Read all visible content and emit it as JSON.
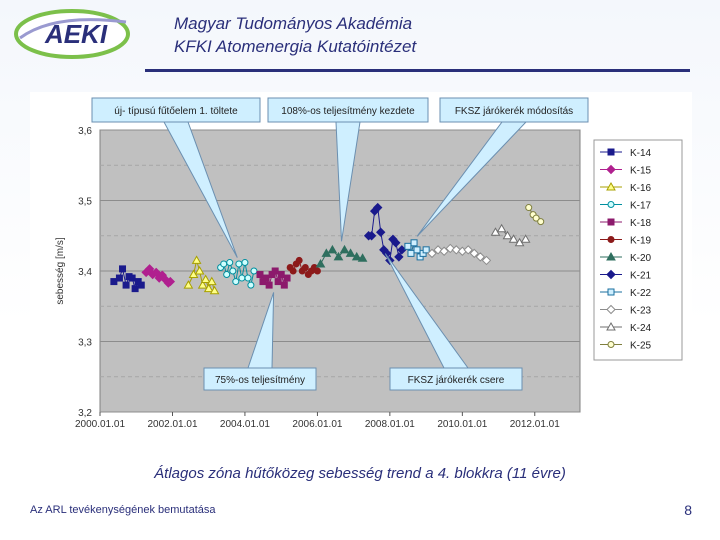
{
  "header": {
    "logo_text": "AEKI",
    "line1": "Magyar Tudományos Akadémia",
    "line2": "KFKI Atomenergia Kutatóintézet"
  },
  "caption": "Átlagos zóna hűtőközeg sebesség trend a 4. blokkra (11 évre)",
  "footer": {
    "left": "Az ARL tevékenységének bemutatása",
    "page": "8"
  },
  "colors": {
    "title": "#2a2f7a",
    "plot_bg": "#c0c0c0"
  },
  "chart_data": {
    "type": "scatter",
    "ylabel": "sebesség [m/s]",
    "xlabel": "",
    "ylim": [
      3.2,
      3.6
    ],
    "yticks": [
      "3,2",
      "3,3",
      "3,4",
      "3,5",
      "3,6"
    ],
    "xticks": [
      "2000.01.01",
      "2002.01.01",
      "2004.01.01",
      "2006.01.01",
      "2008.01.01",
      "2010.01.01",
      "2012.01.01"
    ],
    "grid": true,
    "legend_position": "right",
    "annotations": [
      {
        "text": "új- típusú fűtőelem 1. töltete",
        "placement": "top",
        "target": "K-17"
      },
      {
        "text": "108%-os teljesítmény kezdete",
        "placement": "top",
        "target": "K-20"
      },
      {
        "text": "FKSZ járókerék módosítás",
        "placement": "top",
        "target": "K-22"
      },
      {
        "text": "75%-os teljesítmény",
        "placement": "bottom",
        "target": "K-18"
      },
      {
        "text": "FKSZ járókerék csere",
        "placement": "bottom",
        "target": "K-21"
      }
    ],
    "series": [
      {
        "name": "K-14",
        "marker": "square",
        "color": "#1a1a8c",
        "fill": "#1a1a8c",
        "line": true,
        "x": [
          "2000-05-20",
          "2000-07-15",
          "2000-08-15",
          "2000-09-20",
          "2000-10-20",
          "2000-11-20",
          "2000-12-20",
          "2001-01-20",
          "2001-02-20"
        ],
        "values": [
          3.385,
          3.39,
          3.403,
          3.38,
          3.392,
          3.39,
          3.375,
          3.385,
          3.38
        ]
      },
      {
        "name": "K-15",
        "marker": "diamond",
        "color": "#b0208f",
        "fill": "#b0208f",
        "line": true,
        "x": [
          "2001-04-10",
          "2001-05-15",
          "2001-06-15",
          "2001-07-20",
          "2001-08-20",
          "2001-09-20",
          "2001-10-20",
          "2001-11-20",
          "2001-12-10"
        ],
        "values": [
          3.398,
          3.403,
          3.395,
          3.398,
          3.39,
          3.394,
          3.388,
          3.383,
          3.385
        ]
      },
      {
        "name": "K-16",
        "marker": "triangle",
        "color": "#a8a000",
        "fill": "#ffff88",
        "line": true,
        "x": [
          "2002-06-10",
          "2002-08-01",
          "2002-09-01",
          "2002-10-01",
          "2002-11-01",
          "2002-12-01",
          "2003-01-01",
          "2003-02-01",
          "2003-03-01"
        ],
        "values": [
          3.38,
          3.395,
          3.415,
          3.4,
          3.38,
          3.388,
          3.375,
          3.385,
          3.372
        ]
      },
      {
        "name": "K-17",
        "marker": "circle",
        "color": "#008f9f",
        "fill": "#cfffff",
        "line": true,
        "x": [
          "2003-05-01",
          "2003-06-01",
          "2003-07-01",
          "2003-08-01",
          "2003-09-01",
          "2003-10-01",
          "2003-11-01",
          "2003-12-01",
          "2004-01-01",
          "2004-02-01",
          "2004-03-01",
          "2004-04-01"
        ],
        "values": [
          3.405,
          3.41,
          3.395,
          3.412,
          3.4,
          3.385,
          3.41,
          3.39,
          3.412,
          3.39,
          3.38,
          3.4
        ]
      },
      {
        "name": "K-18",
        "marker": "square",
        "color": "#8c1a6c",
        "fill": "#8c1a6c",
        "line": true,
        "x": [
          "2004-06-01",
          "2004-07-01",
          "2004-08-01",
          "2004-09-01",
          "2004-10-01",
          "2004-11-01",
          "2004-12-01",
          "2005-01-01",
          "2005-02-01",
          "2005-03-01"
        ],
        "values": [
          3.395,
          3.385,
          3.39,
          3.38,
          3.395,
          3.4,
          3.385,
          3.395,
          3.38,
          3.39
        ]
      },
      {
        "name": "K-19",
        "marker": "circle",
        "color": "#8c1a1a",
        "fill": "#8c1a1a",
        "line": true,
        "x": [
          "2005-04-01",
          "2005-05-01",
          "2005-06-01",
          "2005-07-01",
          "2005-08-01",
          "2005-09-01",
          "2005-10-01",
          "2005-11-01",
          "2005-12-01",
          "2006-01-01"
        ],
        "values": [
          3.405,
          3.4,
          3.41,
          3.415,
          3.4,
          3.405,
          3.395,
          3.4,
          3.405,
          3.4
        ]
      },
      {
        "name": "K-20",
        "marker": "triangle",
        "color": "#2f6f5f",
        "fill": "#2f6f5f",
        "line": true,
        "x": [
          "2006-02-01",
          "2006-04-01",
          "2006-06-01",
          "2006-08-01",
          "2006-10-01",
          "2006-12-01",
          "2007-02-01",
          "2007-04-01"
        ],
        "values": [
          3.41,
          3.425,
          3.43,
          3.42,
          3.43,
          3.425,
          3.42,
          3.418
        ]
      },
      {
        "name": "K-21",
        "marker": "diamond",
        "color": "#1a1a8c",
        "fill": "#1a1a8c",
        "line": true,
        "x": [
          "2007-06-01",
          "2007-07-01",
          "2007-08-01",
          "2007-09-01",
          "2007-10-01",
          "2007-11-01",
          "2007-12-01",
          "2008-01-01",
          "2008-02-01",
          "2008-03-01",
          "2008-04-01",
          "2008-05-01"
        ],
        "values": [
          3.45,
          3.45,
          3.485,
          3.49,
          3.455,
          3.43,
          3.425,
          3.415,
          3.445,
          3.44,
          3.42,
          3.43
        ]
      },
      {
        "name": "K-22",
        "marker": "square",
        "color": "#1a6f9f",
        "fill": "#cfefff",
        "line": true,
        "x": [
          "2008-07-01",
          "2008-08-01",
          "2008-09-01",
          "2008-10-01",
          "2008-11-01",
          "2008-12-01",
          "2009-01-01"
        ],
        "values": [
          3.435,
          3.425,
          3.44,
          3.43,
          3.42,
          3.425,
          3.43
        ]
      },
      {
        "name": "K-23",
        "marker": "diamond",
        "color": "#8c8c8c",
        "fill": "#ffffff",
        "line": true,
        "x": [
          "2009-03-01",
          "2009-05-01",
          "2009-07-01",
          "2009-09-01",
          "2009-11-01",
          "2010-01-01",
          "2010-03-01",
          "2010-05-01",
          "2010-07-01",
          "2010-09-01"
        ],
        "values": [
          3.425,
          3.43,
          3.428,
          3.432,
          3.43,
          3.428,
          3.43,
          3.425,
          3.42,
          3.415
        ]
      },
      {
        "name": "K-24",
        "marker": "triangle",
        "color": "#6f6f6f",
        "fill": "#ffffff",
        "line": true,
        "x": [
          "2010-12-01",
          "2011-02-01",
          "2011-04-01",
          "2011-06-01",
          "2011-08-01",
          "2011-10-01"
        ],
        "values": [
          3.455,
          3.46,
          3.45,
          3.445,
          3.44,
          3.445
        ]
      },
      {
        "name": "K-25",
        "marker": "circle",
        "color": "#7f7f3f",
        "fill": "#ffffcf",
        "line": true,
        "x": [
          "2011-11-01",
          "2011-12-15",
          "2012-01-15",
          "2012-03-01"
        ],
        "values": [
          3.49,
          3.48,
          3.475,
          3.47
        ]
      }
    ]
  }
}
